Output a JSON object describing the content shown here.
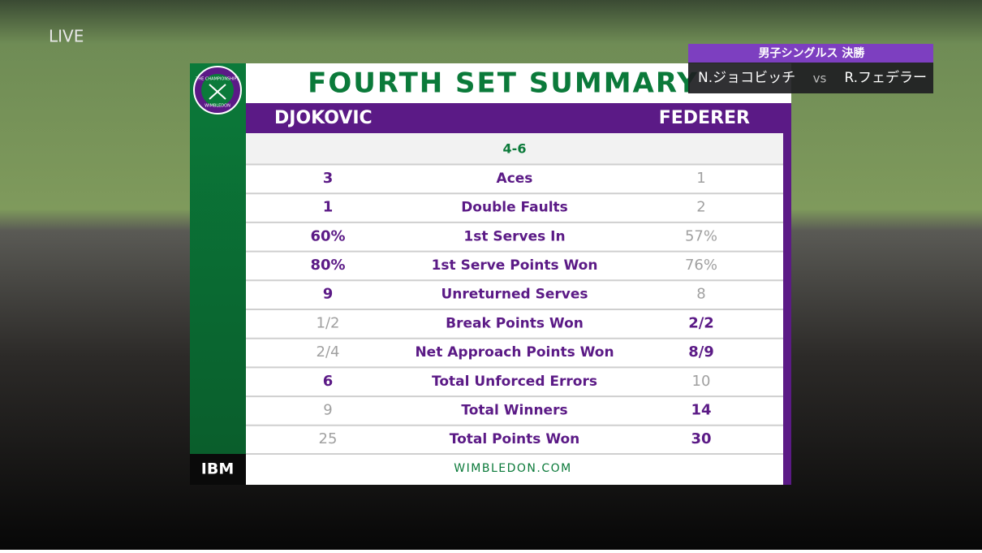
{
  "broadcast": {
    "live": "LIVE",
    "event": "男子シングルス 決勝",
    "player_left": "N.ジョコビッチ",
    "vs": "vs",
    "player_right": "R.フェデラー"
  },
  "header": {
    "title": "FOURTH SET SUMMARY",
    "logo_top": "THE CHAMPIONSHIPS",
    "logo_bottom": "WIMBLEDON"
  },
  "players": {
    "left": "DJOKOVIC",
    "right": "FEDERER"
  },
  "score": "4-6",
  "table": {
    "rows": [
      {
        "left": "3",
        "label": "Aces",
        "right": "1",
        "highlight": "left"
      },
      {
        "left": "1",
        "label": "Double Faults",
        "right": "2",
        "highlight": "left"
      },
      {
        "left": "60%",
        "label": "1st Serves In",
        "right": "57%",
        "highlight": "left"
      },
      {
        "left": "80%",
        "label": "1st Serve Points Won",
        "right": "76%",
        "highlight": "left"
      },
      {
        "left": "9",
        "label": "Unreturned Serves",
        "right": "8",
        "highlight": "left"
      },
      {
        "left": "1/2",
        "label": "Break Points Won",
        "right": "2/2",
        "highlight": "right"
      },
      {
        "left": "2/4",
        "label": "Net Approach Points Won",
        "right": "8/9",
        "highlight": "right"
      },
      {
        "left": "6",
        "label": "Total Unforced Errors",
        "right": "10",
        "highlight": "left"
      },
      {
        "left": "9",
        "label": "Total Winners",
        "right": "14",
        "highlight": "right"
      },
      {
        "left": "25",
        "label": "Total Points Won",
        "right": "30",
        "highlight": "right"
      }
    ]
  },
  "footer": {
    "sponsor": "IBM",
    "site": "WIMBLEDON.COM"
  }
}
